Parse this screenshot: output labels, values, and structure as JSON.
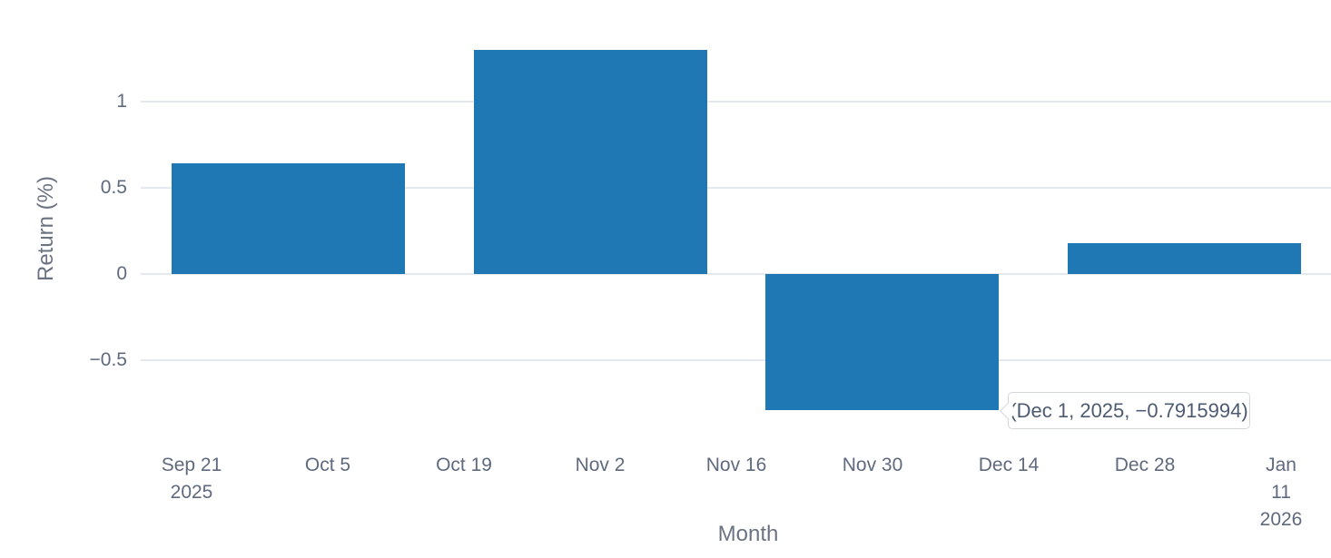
{
  "chart_data": {
    "type": "bar",
    "title": "",
    "xlabel": "Month",
    "ylabel": "Return (%)",
    "x": [
      "Oct 2025",
      "Nov 2025",
      "Dec 2025",
      "Jan 2026"
    ],
    "values": [
      0.64,
      1.3,
      -0.7915994,
      0.18
    ],
    "bar_color": "#1f77b4",
    "x_tick_labels": [
      "Sep 21\n2025",
      "Oct 5",
      "Oct 19",
      "Nov 2",
      "Nov 16",
      "Nov 30",
      "Dec 14",
      "Dec 28",
      "Jan 11\n2026"
    ],
    "y_tick_labels": [
      "1",
      "0.5",
      "0",
      "−0.5"
    ],
    "y_tick_values": [
      1,
      0.5,
      0,
      -0.5
    ],
    "ylim": [
      -0.92,
      1.42
    ],
    "grid": true,
    "legend_position": "none"
  },
  "tooltip": {
    "text": "(Dec 1, 2025, −0.7915994)"
  }
}
